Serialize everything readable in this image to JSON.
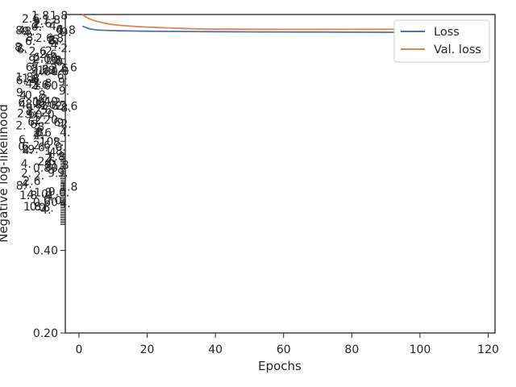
{
  "chart_data": {
    "type": "line",
    "xlabel": "Epochs",
    "ylabel": "Negative log-likelihood",
    "xlim": [
      -4,
      122
    ],
    "ylim": [
      0.2,
      2.9
    ],
    "x_scale": "linear",
    "y_scale": "log",
    "grid": false,
    "legend_position": "top-right",
    "x_ticks": [
      0,
      20,
      40,
      60,
      80,
      100,
      120
    ],
    "x_tick_labels": [
      "0",
      "20",
      "40",
      "60",
      "80",
      "100",
      "120"
    ],
    "y_ticks": [
      0.2,
      0.4,
      0.6,
      0.8,
      1.0,
      1.2,
      1.4,
      1.6,
      1.8,
      2.0
    ],
    "y_tick_labels": [
      "0.20",
      "0.40",
      "0.60",
      "0.80",
      "10⁰",
      "1.20",
      "1.40",
      "1.60",
      "1.80",
      "2.00"
    ],
    "series": [
      {
        "name": "Loss",
        "color": "#4c72b0",
        "x": [
          1,
          2,
          3,
          4,
          5,
          6,
          7,
          8,
          9,
          10,
          12,
          15,
          20,
          25,
          30,
          40,
          50,
          60,
          70,
          80,
          90,
          100,
          110,
          116
        ],
        "y": [
          2.63,
          2.6,
          2.575,
          2.56,
          2.55,
          2.545,
          2.541,
          2.539,
          2.537,
          2.535,
          2.53,
          2.526,
          2.521,
          2.518,
          2.515,
          2.511,
          2.508,
          2.505,
          2.503,
          2.501,
          2.499,
          2.497,
          2.495,
          2.494
        ]
      },
      {
        "name": "Val. loss",
        "color": "#dd8452",
        "x": [
          1,
          2,
          3,
          4,
          5,
          6,
          8,
          10,
          12,
          15,
          18,
          20,
          25,
          30,
          35,
          40,
          45,
          50,
          60,
          70,
          80,
          90,
          100,
          110,
          116
        ],
        "y": [
          2.9,
          2.84,
          2.8,
          2.77,
          2.745,
          2.725,
          2.69,
          2.665,
          2.648,
          2.63,
          2.617,
          2.61,
          2.595,
          2.58,
          2.57,
          2.565,
          2.563,
          2.562,
          2.561,
          2.56,
          2.561,
          2.562,
          2.562,
          2.563,
          2.564
        ]
      }
    ]
  }
}
